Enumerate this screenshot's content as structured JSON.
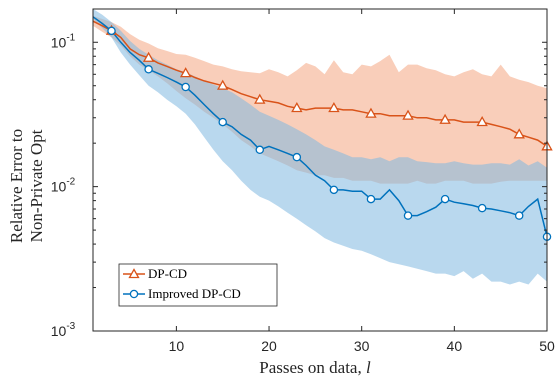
{
  "chart_data": {
    "type": "line",
    "title": "",
    "xlabel": "Passes on data, ",
    "xlabel_var": "l",
    "ylabel_line1": "Relative Error to",
    "ylabel_line2": "Non-Private Opt",
    "xlim": [
      1,
      50
    ],
    "ylim": [
      0.001,
      0.17
    ],
    "yscale": "log",
    "grid": false,
    "legend_position": "bottom-left",
    "x_ticks": [
      10,
      20,
      30,
      40,
      50
    ],
    "x_tick_labels": [
      "10",
      "20",
      "30",
      "40",
      "50"
    ],
    "y_ticks": [
      0.1,
      0.01,
      0.001
    ],
    "y_tick_labels": [
      {
        "base": "10",
        "exp": "-1"
      },
      {
        "base": "10",
        "exp": "-2"
      },
      {
        "base": "10",
        "exp": "-3"
      }
    ],
    "x": [
      1,
      2,
      3,
      4,
      5,
      6,
      7,
      8,
      9,
      10,
      11,
      12,
      13,
      14,
      15,
      16,
      17,
      18,
      19,
      20,
      21,
      22,
      23,
      24,
      25,
      26,
      27,
      28,
      29,
      30,
      31,
      32,
      33,
      34,
      35,
      36,
      37,
      38,
      39,
      40,
      41,
      42,
      43,
      44,
      45,
      46,
      47,
      48,
      49,
      50
    ],
    "marker_x": [
      3,
      7,
      11,
      15,
      19,
      23,
      27,
      31,
      35,
      39,
      43,
      47,
      50
    ],
    "series": [
      {
        "name": "DP-CD",
        "color": "#D95319",
        "band_color": "#F4A582",
        "marker": "triangle",
        "values": [
          0.14,
          0.13,
          0.12,
          0.108,
          0.09,
          0.082,
          0.078,
          0.072,
          0.068,
          0.064,
          0.061,
          0.057,
          0.054,
          0.052,
          0.05,
          0.047,
          0.044,
          0.042,
          0.04,
          0.039,
          0.038,
          0.036,
          0.035,
          0.034,
          0.035,
          0.035,
          0.035,
          0.034,
          0.034,
          0.033,
          0.032,
          0.032,
          0.031,
          0.031,
          0.031,
          0.03,
          0.03,
          0.029,
          0.029,
          0.029,
          0.028,
          0.028,
          0.028,
          0.027,
          0.026,
          0.025,
          0.023,
          0.022,
          0.021,
          0.019
        ],
        "lower": [
          0.13,
          0.118,
          0.108,
          0.095,
          0.08,
          0.07,
          0.064,
          0.058,
          0.052,
          0.046,
          0.041,
          0.037,
          0.033,
          0.03,
          0.027,
          0.024,
          0.021,
          0.019,
          0.017,
          0.016,
          0.015,
          0.014,
          0.013,
          0.0125,
          0.012,
          0.012,
          0.0115,
          0.0115,
          0.011,
          0.011,
          0.011,
          0.0105,
          0.0105,
          0.0105,
          0.0105,
          0.011,
          0.0105,
          0.0105,
          0.011,
          0.011,
          0.011,
          0.0105,
          0.0105,
          0.0105,
          0.0108,
          0.011,
          0.011,
          0.011,
          0.011,
          0.011
        ],
        "upper": [
          0.152,
          0.145,
          0.138,
          0.128,
          0.114,
          0.104,
          0.098,
          0.091,
          0.087,
          0.083,
          0.082,
          0.078,
          0.074,
          0.07,
          0.068,
          0.065,
          0.063,
          0.062,
          0.061,
          0.065,
          0.062,
          0.058,
          0.064,
          0.072,
          0.068,
          0.06,
          0.075,
          0.062,
          0.06,
          0.07,
          0.068,
          0.074,
          0.082,
          0.062,
          0.07,
          0.07,
          0.066,
          0.064,
          0.06,
          0.058,
          0.062,
          0.065,
          0.06,
          0.058,
          0.07,
          0.058,
          0.055,
          0.053,
          0.05,
          0.048
        ]
      },
      {
        "name": "Improved DP-CD",
        "color": "#0072BD",
        "band_color": "#7FB8E0",
        "marker": "circle",
        "values": [
          0.15,
          0.135,
          0.12,
          0.1,
          0.085,
          0.075,
          0.065,
          0.061,
          0.057,
          0.053,
          0.049,
          0.043,
          0.037,
          0.032,
          0.028,
          0.026,
          0.023,
          0.021,
          0.018,
          0.019,
          0.018,
          0.017,
          0.016,
          0.014,
          0.012,
          0.011,
          0.0095,
          0.0095,
          0.0093,
          0.0093,
          0.0082,
          0.0082,
          0.0095,
          0.008,
          0.0063,
          0.0063,
          0.0067,
          0.0072,
          0.0082,
          0.0078,
          0.0076,
          0.0074,
          0.0071,
          0.007,
          0.0068,
          0.0066,
          0.0063,
          0.0073,
          0.0082,
          0.0045
        ],
        "lower": [
          0.145,
          0.125,
          0.108,
          0.085,
          0.07,
          0.059,
          0.05,
          0.045,
          0.04,
          0.036,
          0.032,
          0.027,
          0.022,
          0.018,
          0.015,
          0.013,
          0.011,
          0.0095,
          0.0085,
          0.008,
          0.0073,
          0.0066,
          0.006,
          0.0054,
          0.0049,
          0.0044,
          0.0041,
          0.0039,
          0.0037,
          0.0036,
          0.0034,
          0.0032,
          0.003,
          0.0029,
          0.0028,
          0.0027,
          0.0026,
          0.0025,
          0.0025,
          0.0024,
          0.0026,
          0.0023,
          0.0025,
          0.0022,
          0.0022,
          0.0021,
          0.0022,
          0.0021,
          0.0025,
          0.0022
        ],
        "upper": [
          0.17,
          0.155,
          0.138,
          0.12,
          0.102,
          0.09,
          0.082,
          0.075,
          0.07,
          0.065,
          0.062,
          0.058,
          0.054,
          0.051,
          0.048,
          0.045,
          0.041,
          0.037,
          0.033,
          0.031,
          0.029,
          0.027,
          0.025,
          0.023,
          0.021,
          0.019,
          0.018,
          0.017,
          0.016,
          0.016,
          0.0155,
          0.016,
          0.015,
          0.016,
          0.016,
          0.015,
          0.0148,
          0.0145,
          0.0145,
          0.015,
          0.0145,
          0.0142,
          0.0142,
          0.0145,
          0.0145,
          0.0142,
          0.0155,
          0.014,
          0.015,
          0.0135
        ]
      }
    ]
  }
}
